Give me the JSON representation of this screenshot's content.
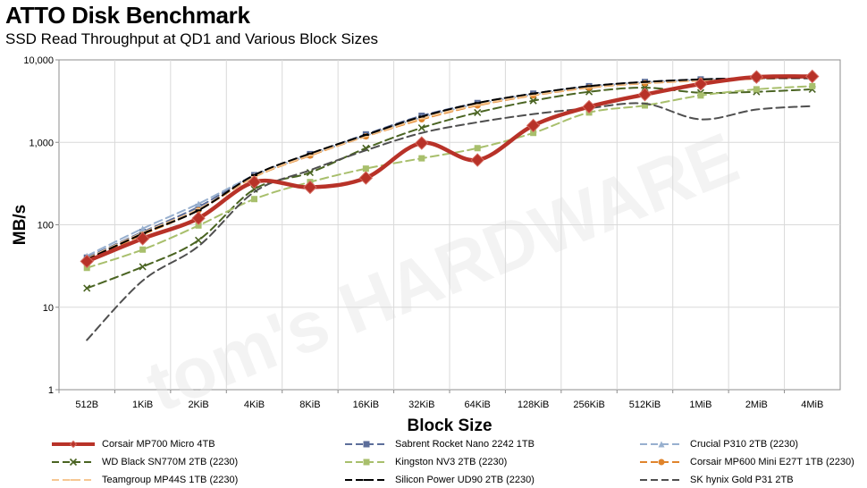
{
  "chart_data": {
    "type": "line",
    "title": "ATTO Disk Benchmark",
    "subtitle": "SSD Read Throughput at QD1 and Various Block Sizes",
    "xlabel": "Block Size",
    "ylabel": "MB/s",
    "yscale": "log",
    "ylim": [
      1,
      10000
    ],
    "yticks": [
      "1",
      "10",
      "100",
      "1,000",
      "10,000"
    ],
    "grid": true,
    "legend_position": "bottom",
    "watermark": "tom's HARDWARE",
    "categories": [
      "512B",
      "1KiB",
      "2KiB",
      "4KiB",
      "8KiB",
      "16KiB",
      "32KiB",
      "64KiB",
      "128KiB",
      "256KiB",
      "512KiB",
      "1MiB",
      "2MiB",
      "4MiB"
    ],
    "series": [
      {
        "name": "Corsair MP700 Micro 4TB",
        "color": "#b83228",
        "style": "solid",
        "marker": "diamond",
        "width": 4.5,
        "values": [
          36,
          68,
          120,
          330,
          285,
          370,
          980,
          610,
          1600,
          2700,
          3800,
          5100,
          6200,
          6300
        ]
      },
      {
        "name": "Sabrent Rocket Nano 2242 1TB",
        "color": "#5c6e9a",
        "style": "dash",
        "marker": "square",
        "width": 2,
        "values": [
          40,
          82,
          165,
          400,
          720,
          1250,
          2100,
          3000,
          3900,
          4800,
          5400,
          5800,
          6000,
          6200
        ]
      },
      {
        "name": "Crucial P310 2TB (2230)",
        "color": "#98b0cf",
        "style": "dash",
        "marker": "triangle",
        "width": 2,
        "values": [
          42,
          90,
          180,
          395,
          700,
          1200,
          2000,
          2900,
          3800,
          4700,
          5300,
          5700,
          5900,
          6100
        ]
      },
      {
        "name": "WD Black SN770M 2TB (2230)",
        "color": "#4a6422",
        "style": "dash",
        "marker": "x",
        "width": 2,
        "values": [
          17,
          31,
          65,
          270,
          430,
          850,
          1500,
          2300,
          3200,
          4100,
          4600,
          4000,
          4100,
          4400
        ]
      },
      {
        "name": "Kingston NV3 2TB (2230)",
        "color": "#a8bf6c",
        "style": "dash",
        "marker": "square",
        "width": 2,
        "values": [
          30,
          50,
          98,
          205,
          330,
          480,
          640,
          850,
          1300,
          2300,
          2800,
          3700,
          4400,
          4800
        ]
      },
      {
        "name": "Corsair MP600 Mini E27T 1TB (2230)",
        "color": "#e0842c",
        "style": "dash",
        "marker": "circle",
        "width": 2,
        "values": [
          38,
          76,
          150,
          380,
          690,
          1180,
          1900,
          2800,
          3700,
          4600,
          5200,
          5600,
          5900,
          6100
        ]
      },
      {
        "name": "Teamgroup MP44S 1TB (2230)",
        "color": "#f6c792",
        "style": "dash",
        "marker": "bar",
        "width": 2,
        "values": [
          39,
          80,
          155,
          385,
          700,
          1190,
          1950,
          2850,
          3750,
          4650,
          5250,
          5650,
          5950,
          6150
        ]
      },
      {
        "name": "Silicon Power UD90 2TB (2230)",
        "color": "#000000",
        "style": "dash",
        "marker": "bar",
        "width": 2,
        "values": [
          38,
          78,
          150,
          400,
          730,
          1230,
          2050,
          3000,
          3900,
          4800,
          5400,
          5800,
          6000,
          6000
        ]
      },
      {
        "name": "SK hynix Gold P31 2TB",
        "color": "#4f4f4f",
        "style": "dash",
        "marker": "none",
        "width": 2,
        "values": [
          4,
          21,
          55,
          250,
          460,
          800,
          1300,
          1750,
          2200,
          2600,
          2950,
          1900,
          2500,
          2750
        ]
      }
    ]
  }
}
